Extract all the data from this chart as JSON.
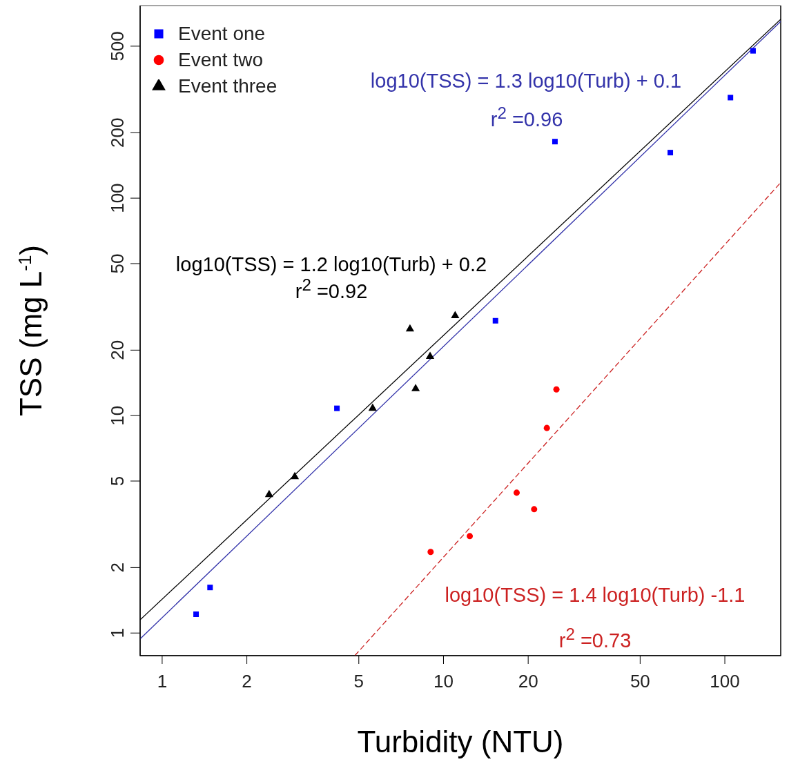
{
  "chart_data": {
    "type": "scatter",
    "xlabel": "Turbidity (NTU)",
    "ylabel": "TSS (mg L$^{-1}$)",
    "log": "xy",
    "grid": false,
    "legend": "top left",
    "xlim": [
      0.835,
      158
    ],
    "xticks": [
      1,
      2,
      5,
      10,
      20,
      50,
      100
    ],
    "ylim": [
      0.787,
      769
    ],
    "yticks": [
      1,
      2,
      5,
      10,
      20,
      50,
      100,
      200,
      500
    ],
    "series": [
      {
        "name": "Event one",
        "color": "#0000ff",
        "marker": "square",
        "x": [
          1.32,
          1.48,
          4.18,
          15.3,
          24.9,
          64,
          104.7,
          126
        ],
        "values": [
          1.22,
          1.62,
          10.8,
          27.3,
          182,
          162,
          290,
          476
        ]
      },
      {
        "name": "Event two",
        "color": "#ff0000",
        "marker": "circle",
        "x": [
          9.0,
          12.4,
          18.2,
          21.0,
          23.3,
          25.2
        ],
        "values": [
          2.36,
          2.79,
          4.42,
          3.71,
          8.77,
          13.2
        ]
      },
      {
        "name": "Event three",
        "color": "#000000",
        "marker": "triangle",
        "x": [
          2.4,
          2.96,
          5.6,
          7.6,
          7.96,
          8.96,
          11.0
        ],
        "values": [
          4.33,
          5.23,
          10.8,
          25.0,
          13.3,
          18.7,
          28.8
        ]
      },
      {
        "type": "line",
        "color": "#3333aa",
        "line_style": "solid",
        "x": [
          0.835,
          158
        ],
        "values": [
          0.94,
          650
        ]
      },
      {
        "type": "line",
        "color": "#cc2222",
        "line_style": "dashed",
        "x": [
          4.84,
          158
        ],
        "values": [
          0.787,
          118
        ]
      },
      {
        "type": "line",
        "color": "#000000",
        "line_style": "solid",
        "x": [
          0.835,
          158
        ],
        "values": [
          1.15,
          665
        ]
      }
    ],
    "annotations": [
      "log10(TSS) = 1.3 log10(Turb) + 0.1",
      "r$^{2}$ =0.96",
      "log10(TSS) = 1.2 log10(Turb) + 0.2",
      "r$^{2}$ =0.92",
      "log10(TSS) = 1.4 log10(Turb) -1.1",
      "r$^{2}$ =0.73"
    ]
  }
}
